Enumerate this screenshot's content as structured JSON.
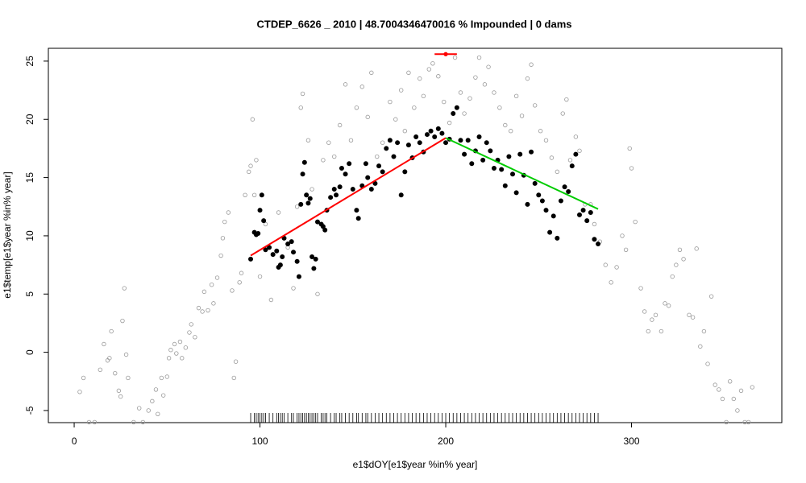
{
  "chart_data": {
    "type": "scatter",
    "title": "CTDEP_6626 _ 2010   |   48.7004346470016  % Impounded |  0  dams",
    "x_label": "e1$dOY[e1$year %in% year]",
    "y_label": "e1$temp[e1$year %in% year]",
    "xlim": [
      -13.9,
      380.9
    ],
    "ylim": [
      -6.04,
      26.1
    ],
    "xticks": [
      0,
      100,
      200,
      300
    ],
    "yticks": [
      -5,
      0,
      5,
      10,
      15,
      20,
      25
    ],
    "series": [
      {
        "color": "#999999",
        "marker": "open",
        "points": [
          [
            3,
            -3.4
          ],
          [
            5,
            -2.2
          ],
          [
            8,
            -6
          ],
          [
            11,
            -6
          ],
          [
            14,
            -1.5
          ],
          [
            16,
            0.7
          ],
          [
            18,
            -0.7
          ],
          [
            19,
            -0.5
          ],
          [
            20,
            1.8
          ],
          [
            22,
            -1.8
          ],
          [
            24,
            -3.3
          ],
          [
            25,
            -3.8
          ],
          [
            26,
            2.7
          ],
          [
            27,
            5.5
          ],
          [
            28,
            -0.2
          ],
          [
            29,
            -2.2
          ],
          [
            32,
            -6
          ],
          [
            35,
            -4.8
          ],
          [
            37,
            -6
          ],
          [
            40,
            -5
          ],
          [
            42,
            -4.2
          ],
          [
            44,
            -3.2
          ],
          [
            45,
            -5.3
          ],
          [
            47,
            -2.2
          ],
          [
            48,
            -3.7
          ],
          [
            50,
            -2.1
          ],
          [
            51,
            -0.5
          ],
          [
            52,
            0.2
          ],
          [
            54,
            0.7
          ],
          [
            55,
            -0.1
          ],
          [
            57,
            0.9
          ],
          [
            58,
            -0.5
          ],
          [
            60,
            0.4
          ],
          [
            62,
            1.7
          ],
          [
            63,
            2.4
          ],
          [
            65,
            1.3
          ],
          [
            67,
            3.8
          ],
          [
            69,
            3.5
          ],
          [
            70,
            5.2
          ],
          [
            72,
            3.6
          ],
          [
            74,
            5.8
          ],
          [
            75,
            4.2
          ],
          [
            77,
            6.4
          ],
          [
            79,
            8.3
          ],
          [
            80,
            9.8
          ],
          [
            81,
            11.2
          ],
          [
            83,
            12
          ],
          [
            85,
            5.3
          ],
          [
            86,
            -2.2
          ],
          [
            87,
            -0.8
          ],
          [
            89,
            6
          ],
          [
            90,
            6.8
          ],
          [
            92,
            13.5
          ],
          [
            94,
            15.5
          ],
          [
            95,
            16
          ],
          [
            96,
            20
          ],
          [
            97,
            13.5
          ],
          [
            98,
            16.5
          ],
          [
            100,
            6.5
          ],
          [
            103,
            11
          ],
          [
            106,
            4.5
          ],
          [
            110,
            12
          ],
          [
            115,
            9
          ],
          [
            118,
            5.5
          ],
          [
            120,
            12.5
          ],
          [
            122,
            21
          ],
          [
            123,
            22.2
          ],
          [
            126,
            18.2
          ],
          [
            128,
            14
          ],
          [
            131,
            5
          ],
          [
            134,
            16.5
          ],
          [
            137,
            18
          ],
          [
            140,
            16.8
          ],
          [
            143,
            19.5
          ],
          [
            146,
            23
          ],
          [
            149,
            18.2
          ],
          [
            152,
            21
          ],
          [
            155,
            22.8
          ],
          [
            158,
            20.2
          ],
          [
            160,
            24
          ],
          [
            163,
            16.8
          ],
          [
            166,
            18
          ],
          [
            170,
            21.5
          ],
          [
            173,
            20
          ],
          [
            176,
            22.5
          ],
          [
            178,
            19
          ],
          [
            180,
            24
          ],
          [
            183,
            21
          ],
          [
            186,
            23.5
          ],
          [
            188,
            22
          ],
          [
            191,
            24.3
          ],
          [
            193,
            24.8
          ],
          [
            196,
            23.7
          ],
          [
            199,
            21.5
          ],
          [
            202,
            19.7
          ],
          [
            205,
            25.3
          ],
          [
            208,
            22.3
          ],
          [
            210,
            20.5
          ],
          [
            213,
            21.8
          ],
          [
            216,
            23.6
          ],
          [
            218,
            25.3
          ],
          [
            221,
            23
          ],
          [
            223,
            24.5
          ],
          [
            226,
            22.3
          ],
          [
            229,
            21
          ],
          [
            232,
            19.5
          ],
          [
            235,
            19
          ],
          [
            238,
            22
          ],
          [
            241,
            20.3
          ],
          [
            244,
            23.5
          ],
          [
            246,
            24.7
          ],
          [
            248,
            21.2
          ],
          [
            251,
            19
          ],
          [
            254,
            18.2
          ],
          [
            257,
            16.7
          ],
          [
            260,
            15.5
          ],
          [
            263,
            20.5
          ],
          [
            265,
            21.7
          ],
          [
            267,
            16.5
          ],
          [
            270,
            18.5
          ],
          [
            272,
            17.3
          ],
          [
            275,
            12.7
          ],
          [
            278,
            12.7
          ],
          [
            280,
            11
          ],
          [
            283,
            9.5
          ],
          [
            286,
            7.5
          ],
          [
            289,
            6
          ],
          [
            292,
            7.3
          ],
          [
            295,
            10
          ],
          [
            297,
            8.8
          ],
          [
            299,
            17.5
          ],
          [
            300,
            15.8
          ],
          [
            302,
            11.2
          ],
          [
            305,
            5.5
          ],
          [
            307,
            3.5
          ],
          [
            309,
            1.8
          ],
          [
            311,
            2.8
          ],
          [
            313,
            3.2
          ],
          [
            316,
            1.8
          ],
          [
            318,
            4.2
          ],
          [
            320,
            4
          ],
          [
            322,
            6.5
          ],
          [
            324,
            7.5
          ],
          [
            326,
            8.8
          ],
          [
            328,
            8
          ],
          [
            331,
            3.2
          ],
          [
            333,
            3
          ],
          [
            335,
            8.9
          ],
          [
            337,
            0.5
          ],
          [
            339,
            1.8
          ],
          [
            341,
            -1
          ],
          [
            343,
            4.8
          ],
          [
            345,
            -2.8
          ],
          [
            347,
            -3.2
          ],
          [
            349,
            -4
          ],
          [
            351,
            -6
          ],
          [
            353,
            -2.5
          ],
          [
            355,
            -4
          ],
          [
            357,
            -5
          ],
          [
            359,
            -3.3
          ],
          [
            361,
            -6
          ],
          [
            363,
            -6
          ],
          [
            365,
            -3
          ]
        ]
      },
      {
        "color": "#000000",
        "marker": "filled",
        "rug": true,
        "points": [
          [
            95,
            8
          ],
          [
            97,
            10.3
          ],
          [
            98,
            10.1
          ],
          [
            99,
            10.2
          ],
          [
            100,
            12.2
          ],
          [
            101,
            13.5
          ],
          [
            102,
            11.3
          ],
          [
            103,
            8.8
          ],
          [
            105,
            9
          ],
          [
            107,
            8.4
          ],
          [
            109,
            8.7
          ],
          [
            110,
            7.3
          ],
          [
            111,
            7.5
          ],
          [
            112,
            8.2
          ],
          [
            113,
            9.8
          ],
          [
            115,
            9.3
          ],
          [
            117,
            9.5
          ],
          [
            118,
            8.6
          ],
          [
            120,
            7.8
          ],
          [
            121,
            6.5
          ],
          [
            122,
            12.7
          ],
          [
            123,
            15.3
          ],
          [
            124,
            16.3
          ],
          [
            125,
            13.5
          ],
          [
            126,
            12.8
          ],
          [
            127,
            13.2
          ],
          [
            128,
            8.2
          ],
          [
            129,
            7.2
          ],
          [
            130,
            8
          ],
          [
            131,
            11.2
          ],
          [
            133,
            11
          ],
          [
            134,
            10.8
          ],
          [
            135,
            10.5
          ],
          [
            136,
            12.2
          ],
          [
            138,
            13.3
          ],
          [
            140,
            14
          ],
          [
            141,
            13.5
          ],
          [
            143,
            14.2
          ],
          [
            144,
            15.8
          ],
          [
            146,
            15.3
          ],
          [
            148,
            16.2
          ],
          [
            150,
            14
          ],
          [
            152,
            12.2
          ],
          [
            153,
            11.5
          ],
          [
            155,
            14.3
          ],
          [
            157,
            16.2
          ],
          [
            158,
            15
          ],
          [
            160,
            14
          ],
          [
            162,
            14.5
          ],
          [
            164,
            16
          ],
          [
            166,
            15.5
          ],
          [
            168,
            17.5
          ],
          [
            170,
            18.2
          ],
          [
            172,
            16.8
          ],
          [
            174,
            18
          ],
          [
            176,
            13.5
          ],
          [
            178,
            15.5
          ],
          [
            180,
            17.8
          ],
          [
            182,
            16.7
          ],
          [
            184,
            18.5
          ],
          [
            186,
            18
          ],
          [
            188,
            17.2
          ],
          [
            190,
            18.7
          ],
          [
            192,
            19
          ],
          [
            194,
            18.5
          ],
          [
            196,
            19.2
          ],
          [
            198,
            18.8
          ],
          [
            200,
            18
          ],
          [
            202,
            18.3
          ],
          [
            204,
            20.5
          ],
          [
            206,
            21
          ],
          [
            208,
            18.2
          ],
          [
            210,
            17
          ],
          [
            212,
            18.2
          ],
          [
            214,
            16.2
          ],
          [
            216,
            17.3
          ],
          [
            218,
            18.5
          ],
          [
            220,
            16.5
          ],
          [
            222,
            18
          ],
          [
            224,
            17.3
          ],
          [
            226,
            15.8
          ],
          [
            228,
            16.5
          ],
          [
            230,
            15.7
          ],
          [
            232,
            14.3
          ],
          [
            234,
            16.8
          ],
          [
            236,
            15.3
          ],
          [
            238,
            13.7
          ],
          [
            240,
            17
          ],
          [
            242,
            15.2
          ],
          [
            244,
            12.7
          ],
          [
            246,
            17.2
          ],
          [
            248,
            14.5
          ],
          [
            250,
            13.5
          ],
          [
            252,
            13
          ],
          [
            254,
            12.2
          ],
          [
            256,
            10.3
          ],
          [
            258,
            11.7
          ],
          [
            260,
            9.8
          ],
          [
            262,
            13
          ],
          [
            264,
            14.2
          ],
          [
            266,
            13.8
          ],
          [
            268,
            16
          ],
          [
            270,
            17
          ],
          [
            272,
            11.8
          ],
          [
            274,
            12.2
          ],
          [
            276,
            11.3
          ],
          [
            278,
            12
          ],
          [
            280,
            9.7
          ],
          [
            282,
            9.3
          ]
        ]
      }
    ],
    "lines": [
      {
        "color": "#ff0000",
        "x": [
          95,
          200
        ],
        "y": [
          8.3,
          18.4
        ]
      },
      {
        "color": "#00cc00",
        "x": [
          200,
          282
        ],
        "y": [
          18.4,
          12.3
        ]
      }
    ],
    "highlight": {
      "color": "#ff0000",
      "x": 200,
      "y": 25.6,
      "xerr": 6
    }
  }
}
